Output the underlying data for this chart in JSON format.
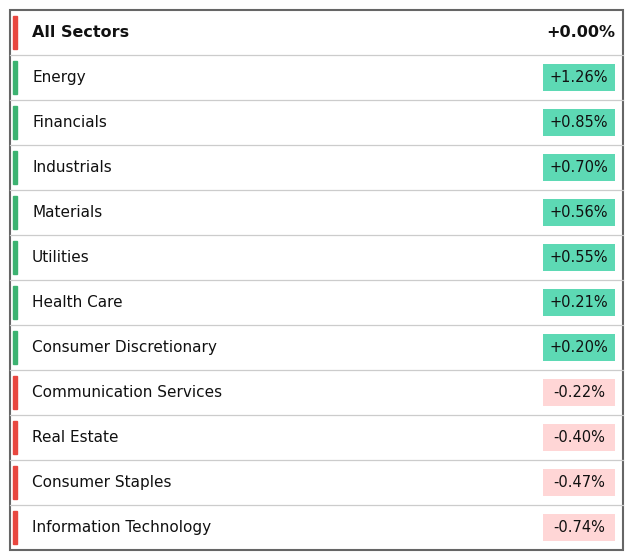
{
  "header": {
    "label": "All Sectors",
    "value": "+0.00%",
    "bar_color": "#e8473f"
  },
  "rows": [
    {
      "label": "Energy",
      "value": "+1.26%",
      "positive": true,
      "bar_color": "#3cb371"
    },
    {
      "label": "Financials",
      "value": "+0.85%",
      "positive": true,
      "bar_color": "#3cb371"
    },
    {
      "label": "Industrials",
      "value": "+0.70%",
      "positive": true,
      "bar_color": "#3cb371"
    },
    {
      "label": "Materials",
      "value": "+0.56%",
      "positive": true,
      "bar_color": "#3cb371"
    },
    {
      "label": "Utilities",
      "value": "+0.55%",
      "positive": true,
      "bar_color": "#3cb371"
    },
    {
      "label": "Health Care",
      "value": "+0.21%",
      "positive": true,
      "bar_color": "#3cb371"
    },
    {
      "label": "Consumer Discretionary",
      "value": "+0.20%",
      "positive": true,
      "bar_color": "#3cb371"
    },
    {
      "label": "Communication Services",
      "value": "-0.22%",
      "positive": false,
      "bar_color": "#e8473f"
    },
    {
      "label": "Real Estate",
      "value": "-0.40%",
      "positive": false,
      "bar_color": "#e8473f"
    },
    {
      "label": "Consumer Staples",
      "value": "-0.47%",
      "positive": false,
      "bar_color": "#e8473f"
    },
    {
      "label": "Information Technology",
      "value": "-0.74%",
      "positive": false,
      "bar_color": "#e8473f"
    }
  ],
  "fig_width": 6.33,
  "fig_height": 5.6,
  "dpi": 100,
  "bg_color": "#ffffff",
  "outer_border_color": "#666666",
  "divider_color": "#cccccc",
  "pos_badge_bg": "#5dd9b4",
  "neg_badge_bg": "#ffd6d6",
  "text_color": "#111111",
  "header_fontsize": 11.5,
  "row_fontsize": 11.0,
  "badge_fontsize": 10.5
}
